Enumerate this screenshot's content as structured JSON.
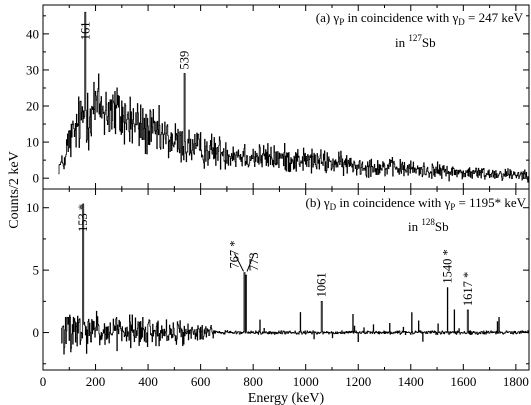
{
  "chart_data": [
    {
      "panel": "a",
      "type": "line",
      "style": "histogram",
      "annotation": {
        "prefix": "(a) γ",
        "sub1": "P",
        "middle": " in coincidence with γ",
        "sub2": "D",
        "suffix": " = 247 keV",
        "nucleus_pre": "in ",
        "mass_number": "127",
        "element": "Sb"
      },
      "xlim": [
        0,
        1850
      ],
      "ylim": [
        -3,
        48
      ],
      "yticks": [
        0,
        10,
        20,
        30,
        40
      ],
      "grid": false,
      "peaks": [
        {
          "energy": 161,
          "counts": 46,
          "label": "161"
        },
        {
          "energy": 539,
          "counts": 29,
          "label": "539"
        }
      ],
      "envelope": {
        "x": [
          40,
          100,
          161,
          200,
          250,
          300,
          400,
          539,
          600,
          800,
          1000,
          1200,
          1400,
          1600,
          1850
        ],
        "y": [
          3,
          10,
          18,
          20,
          19,
          17,
          13,
          9,
          8,
          6,
          5,
          3.5,
          2.5,
          1.5,
          1
        ]
      }
    },
    {
      "panel": "b",
      "type": "line",
      "style": "histogram",
      "annotation": {
        "prefix": "(b) γ",
        "sub1": "D",
        "middle": " in coincidence with γ",
        "sub2": "P",
        "suffix": " = 1195* keV",
        "nucleus_pre": "in ",
        "mass_number": "128",
        "element": "Sb"
      },
      "xlabel": "Energy (keV)",
      "xlim": [
        0,
        1850
      ],
      "xticks": [
        0,
        200,
        400,
        600,
        800,
        1000,
        1200,
        1400,
        1600,
        1800
      ],
      "ylim": [
        -3,
        11.5
      ],
      "yticks": [
        0,
        5,
        10
      ],
      "grid": false,
      "peaks": [
        {
          "energy": 153,
          "counts": 10.3,
          "label": "153 *"
        },
        {
          "energy": 767,
          "counts": 4.8,
          "label": "767 *"
        },
        {
          "energy": 773,
          "counts": 4.6,
          "label": "773"
        },
        {
          "energy": 1061,
          "counts": 2.5,
          "label": "1061"
        },
        {
          "energy": 1540,
          "counts": 3.6,
          "label": "1540 *"
        },
        {
          "energy": 1617,
          "counts": 1.8,
          "label": "1617 *"
        }
      ]
    }
  ],
  "shared_ylabel": "Counts/2 keV"
}
